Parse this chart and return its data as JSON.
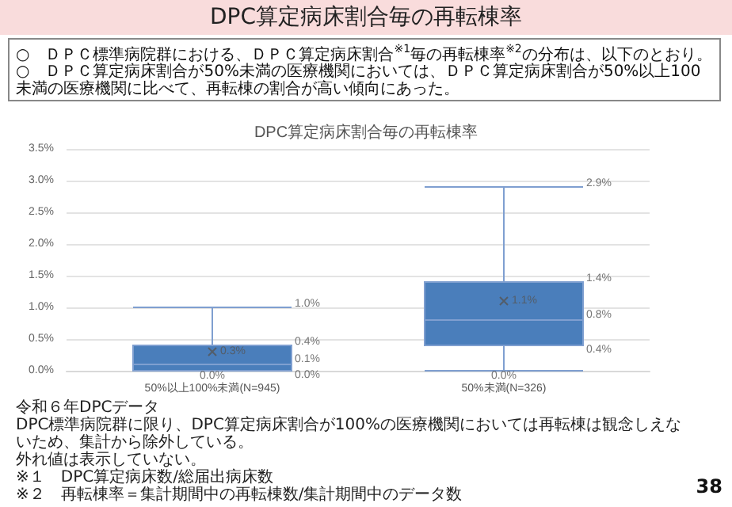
{
  "chart_data": {
    "type": "box",
    "title": "DPC算定病床割合毎の再転棟率",
    "subtitle": "○　ＤＰＣ標準病院群における、ＤＰＣ算定病床割合$^{※1}$毎の再転棟率$^{※2}$の分布は、以下のとおり。\n○　ＤＰＣ算定病床割合が50%未満の医療機関においては、ＤＰＣ算定病床割合が50%以上100未満の医療機関に比べて、再転棟の割合が高い傾向にあった。",
    "annotations": [
      "DPC算定病床割合毎の再転棟率",
      "令和６年DPCデータ",
      "DPC標準病院群に限り、DPC算定病床割合が100%の医療機関においては再転棟は観念しえないため、集計から除外している。",
      "外れ値は表示していない。",
      "※１　DPC算定病床数/総届出病床数",
      "※２　再転棟率＝集計期間中の再転棟数/集計期間中のデータ数",
      "38",
      "1.0%",
      "0.4%",
      "0.1%",
      "0.0%",
      "0.0%",
      "0.3%",
      "2.9%",
      "1.4%",
      "0.8%",
      "0.4%",
      "0.0%",
      "1.1%"
    ],
    "categories": [
      "50%以上100%未満(N=945)",
      "50%未満(N=326)"
    ],
    "boxes": [
      {
        "low": 0.0,
        "q1": 0.0,
        "median": 0.1,
        "q3": 0.4,
        "high": 1.0,
        "mean": 0.3
      },
      {
        "low": 0.0,
        "q1": 0.4,
        "median": 0.8,
        "q3": 1.4,
        "high": 2.9,
        "mean": 1.1
      }
    ],
    "color": "#4a7ebb",
    "ylim": [
      0,
      3.5
    ],
    "yticks": [
      {
        "value": 0,
        "label": "0.0%"
      },
      {
        "value": 0.5,
        "label": "0.5%"
      },
      {
        "value": 1,
        "label": "1.0%"
      },
      {
        "value": 1.5,
        "label": "1.5%"
      },
      {
        "value": 2,
        "label": "2.0%"
      },
      {
        "value": 2.5,
        "label": "2.5%"
      },
      {
        "value": 3,
        "label": "3.0%"
      },
      {
        "value": 3.5,
        "label": "3.5%"
      }
    ],
    "grid": "y",
    "marker": "cross"
  }
}
